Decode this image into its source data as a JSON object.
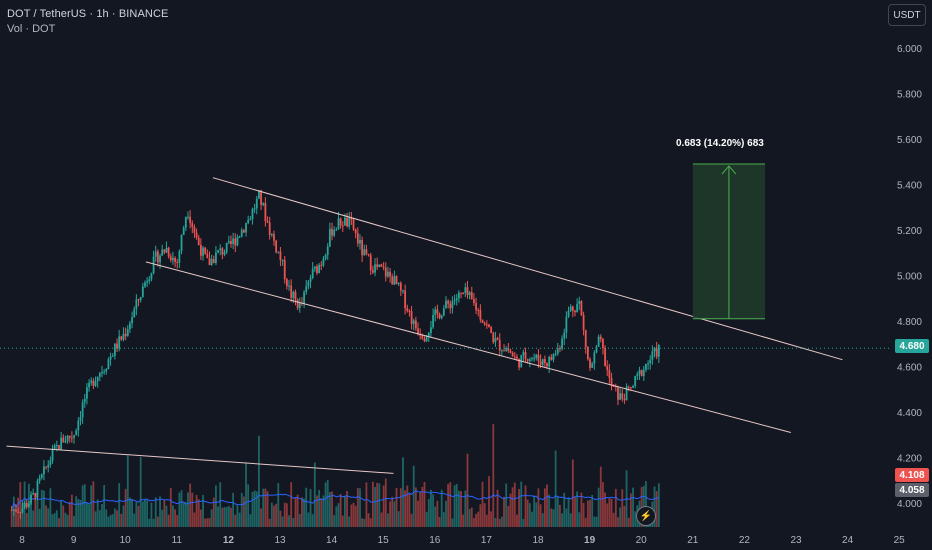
{
  "header": {
    "symbol_line": "DOT / TetherUS · 1h · BINANCE",
    "volume_line": "Vol · DOT"
  },
  "currency_button": "USDT",
  "price_tags": {
    "last": "4.680",
    "red": "4.108",
    "gray": "4.058"
  },
  "measure_label": "0.683 (14.20%) 683",
  "flash_icon": "lightning-icon",
  "colors": {
    "background": "#131722",
    "up": "#26a69a",
    "down": "#ef5350",
    "channel": "#e8c8c8",
    "volume_ma": "#2962ff",
    "target_box": "#1f3a2a",
    "target_border": "#4caf50"
  },
  "chart_data": {
    "type": "candlestick",
    "xlabel": "",
    "ylabel": "",
    "x_tick_labels": [
      "8",
      "9",
      "10",
      "11",
      "12",
      "13",
      "14",
      "15",
      "16",
      "17",
      "18",
      "19",
      "20",
      "21",
      "22",
      "23",
      "24",
      "25"
    ],
    "x_tick_bold": [
      "12",
      "19"
    ],
    "y_tick_labels": [
      "4.000",
      "4.200",
      "4.400",
      "4.600",
      "4.800",
      "5.000",
      "5.200",
      "5.400",
      "5.600",
      "5.800",
      "6.000"
    ],
    "y_range": [
      3.95,
      6.1
    ],
    "x_range_days": [
      7.7,
      25.2
    ],
    "close_series": [
      [
        7.8,
        3.97
      ],
      [
        8.0,
        3.98
      ],
      [
        8.2,
        4.02
      ],
      [
        8.4,
        4.12
      ],
      [
        8.6,
        4.22
      ],
      [
        8.8,
        4.28
      ],
      [
        9.0,
        4.3
      ],
      [
        9.2,
        4.45
      ],
      [
        9.4,
        4.55
      ],
      [
        9.6,
        4.6
      ],
      [
        9.8,
        4.68
      ],
      [
        10.0,
        4.75
      ],
      [
        10.2,
        4.86
      ],
      [
        10.4,
        4.98
      ],
      [
        10.6,
        5.08
      ],
      [
        10.8,
        5.12
      ],
      [
        11.0,
        5.05
      ],
      [
        11.2,
        5.3
      ],
      [
        11.4,
        5.15
      ],
      [
        11.6,
        5.05
      ],
      [
        11.8,
        5.1
      ],
      [
        12.0,
        5.12
      ],
      [
        12.2,
        5.18
      ],
      [
        12.4,
        5.25
      ],
      [
        12.6,
        5.35
      ],
      [
        12.8,
        5.2
      ],
      [
        13.0,
        5.08
      ],
      [
        13.2,
        4.92
      ],
      [
        13.4,
        4.86
      ],
      [
        13.6,
        5.0
      ],
      [
        13.8,
        5.06
      ],
      [
        14.0,
        5.2
      ],
      [
        14.2,
        5.24
      ],
      [
        14.4,
        5.22
      ],
      [
        14.6,
        5.1
      ],
      [
        14.8,
        5.04
      ],
      [
        15.0,
        5.02
      ],
      [
        15.2,
        4.98
      ],
      [
        15.4,
        4.9
      ],
      [
        15.6,
        4.78
      ],
      [
        15.8,
        4.74
      ],
      [
        16.0,
        4.82
      ],
      [
        16.2,
        4.86
      ],
      [
        16.4,
        4.9
      ],
      [
        16.6,
        4.92
      ],
      [
        16.8,
        4.86
      ],
      [
        17.0,
        4.78
      ],
      [
        17.2,
        4.7
      ],
      [
        17.4,
        4.68
      ],
      [
        17.6,
        4.62
      ],
      [
        17.8,
        4.65
      ],
      [
        18.0,
        4.63
      ],
      [
        18.2,
        4.62
      ],
      [
        18.4,
        4.68
      ],
      [
        18.6,
        4.85
      ],
      [
        18.8,
        4.88
      ],
      [
        19.0,
        4.58
      ],
      [
        19.2,
        4.72
      ],
      [
        19.4,
        4.52
      ],
      [
        19.6,
        4.46
      ],
      [
        19.8,
        4.5
      ],
      [
        20.0,
        4.58
      ],
      [
        20.2,
        4.64
      ],
      [
        20.35,
        4.68
      ]
    ],
    "volume": {
      "label": "Vol · DOT",
      "last_value_tag": "4.058"
    },
    "channel": {
      "upper": [
        [
          11.7,
          5.43
        ],
        [
          23.9,
          4.63
        ]
      ],
      "lower": [
        [
          10.4,
          5.06
        ],
        [
          22.9,
          4.31
        ]
      ]
    },
    "trendline": [
      [
        7.7,
        4.25
      ],
      [
        15.2,
        4.13
      ]
    ],
    "target": {
      "label": "0.683 (14.20%) 683",
      "from": 4.81,
      "to": 5.49,
      "x_start": 21.0,
      "x_end": 22.4
    },
    "grid": false,
    "legend": "none"
  }
}
